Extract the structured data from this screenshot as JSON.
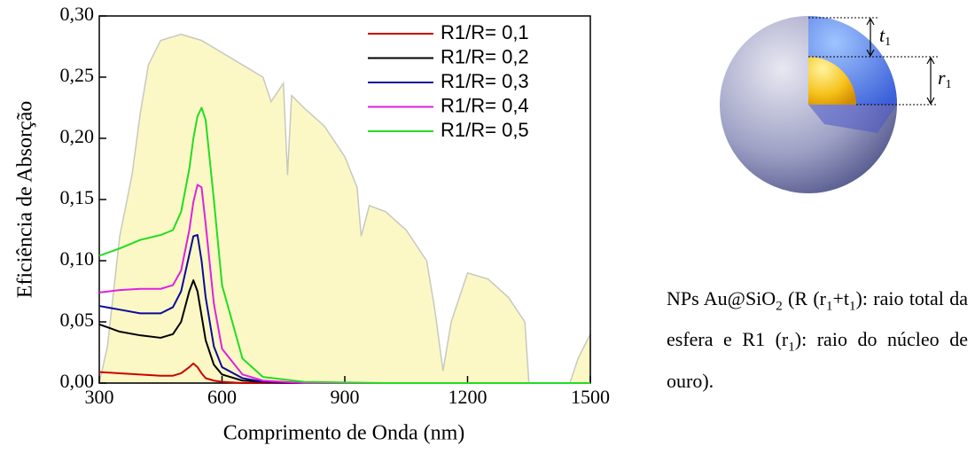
{
  "chart_data": {
    "type": "line",
    "x_label": "Comprimento de Onda (nm)",
    "y_label": "Eficiência de Absorção",
    "xlim": [
      300,
      1500
    ],
    "xticks": [
      300,
      600,
      900,
      1200,
      1500
    ],
    "ylim": [
      0,
      0.3
    ],
    "yticks": [
      {
        "value": 0,
        "label": "0,00"
      },
      {
        "value": 0.05,
        "label": "0,05"
      },
      {
        "value": 0.1,
        "label": "0,10"
      },
      {
        "value": 0.15,
        "label": "0,15"
      },
      {
        "value": 0.2,
        "label": "0,20"
      },
      {
        "value": 0.25,
        "label": "0,25"
      },
      {
        "value": 0.3,
        "label": "0,30"
      }
    ],
    "legend_position": "upper right",
    "x": [
      300,
      350,
      400,
      450,
      480,
      500,
      520,
      530,
      540,
      550,
      560,
      580,
      600,
      650,
      700,
      800,
      1000,
      1500
    ],
    "series": [
      {
        "name": "R1/R= 0,1",
        "color": "#cc0000",
        "values": [
          0.009,
          0.008,
          0.007,
          0.006,
          0.006,
          0.008,
          0.013,
          0.016,
          0.013,
          0.008,
          0.004,
          0.002,
          0.001,
          0,
          0,
          0,
          0,
          0
        ]
      },
      {
        "name": "R1/R= 0,2",
        "color": "#000000",
        "values": [
          0.048,
          0.042,
          0.039,
          0.037,
          0.04,
          0.05,
          0.075,
          0.084,
          0.075,
          0.055,
          0.035,
          0.015,
          0.007,
          0.002,
          0.001,
          0,
          0,
          0
        ]
      },
      {
        "name": "R1/R= 0,3",
        "color": "#0a0a9a",
        "values": [
          0.063,
          0.06,
          0.057,
          0.057,
          0.062,
          0.075,
          0.105,
          0.12,
          0.121,
          0.1,
          0.07,
          0.03,
          0.013,
          0.004,
          0.001,
          0,
          0,
          0
        ]
      },
      {
        "name": "R1/R= 0,4",
        "color": "#e020e0",
        "values": [
          0.074,
          0.076,
          0.077,
          0.077,
          0.08,
          0.092,
          0.125,
          0.148,
          0.162,
          0.16,
          0.13,
          0.065,
          0.028,
          0.007,
          0.002,
          0,
          0,
          0
        ]
      },
      {
        "name": "R1/R= 0,5",
        "color": "#22dd22",
        "values": [
          0.104,
          0.11,
          0.117,
          0.121,
          0.125,
          0.14,
          0.175,
          0.2,
          0.218,
          0.225,
          0.215,
          0.15,
          0.08,
          0.02,
          0.005,
          0.001,
          0,
          0
        ]
      }
    ],
    "background_area": {
      "color": "#fbf8c6",
      "edge_color": "#c8c8c0",
      "x": [
        300,
        320,
        350,
        380,
        400,
        420,
        450,
        500,
        550,
        600,
        650,
        700,
        720,
        750,
        760,
        770,
        800,
        850,
        900,
        930,
        940,
        960,
        1000,
        1050,
        1100,
        1120,
        1140,
        1160,
        1200,
        1250,
        1300,
        1340,
        1350,
        1450,
        1470,
        1500
      ],
      "values": [
        0,
        0.03,
        0.12,
        0.17,
        0.22,
        0.26,
        0.28,
        0.285,
        0.28,
        0.27,
        0.26,
        0.25,
        0.23,
        0.245,
        0.17,
        0.235,
        0.225,
        0.21,
        0.185,
        0.16,
        0.12,
        0.145,
        0.14,
        0.125,
        0.1,
        0.06,
        0.01,
        0.05,
        0.09,
        0.085,
        0.07,
        0.05,
        0,
        0,
        0.02,
        0.04
      ]
    }
  },
  "diagram": {
    "t_label": {
      "letter": "t",
      "sub": "1"
    },
    "r_label": {
      "letter": "r",
      "sub": "1"
    }
  },
  "caption": [
    {
      "text": "NPs Au@SiO"
    },
    {
      "text": "2",
      "sub": true
    },
    {
      "text": " (R (r"
    },
    {
      "text": "1",
      "sub": true
    },
    {
      "text": "+t"
    },
    {
      "text": "1",
      "sub": true
    },
    {
      "text": "): raio total da esfera e R1 (r"
    },
    {
      "text": "1",
      "sub": true
    },
    {
      "text": "): raio do núcleo de ouro)."
    }
  ]
}
